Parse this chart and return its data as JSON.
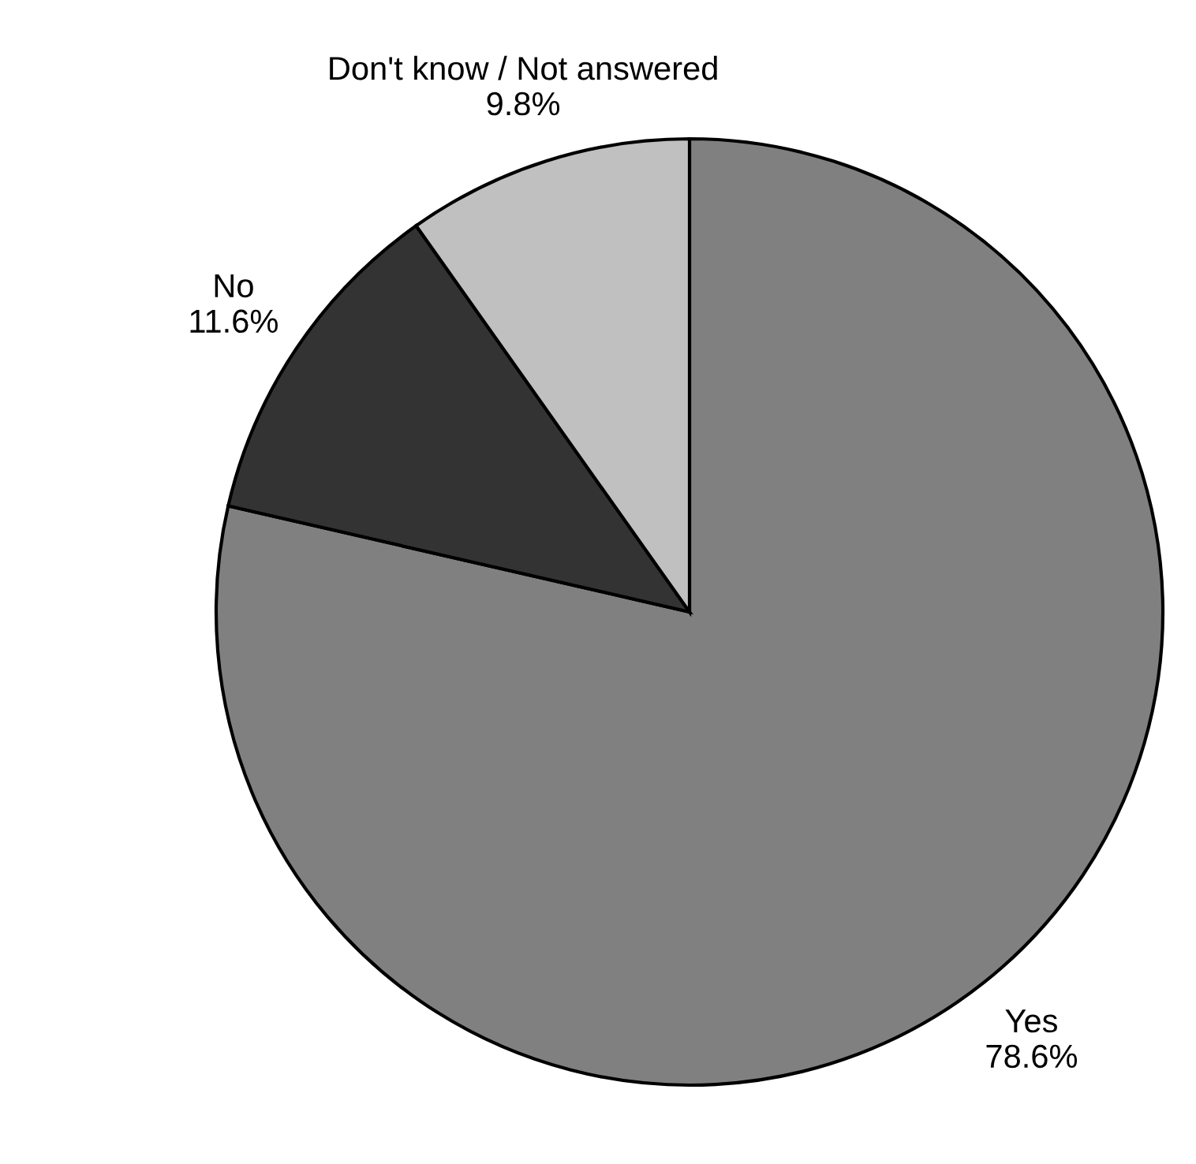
{
  "chart_data": {
    "type": "pie",
    "categories": [
      "Yes",
      "No",
      "Don't know / Not answered"
    ],
    "values": [
      78.6,
      11.6,
      9.8
    ],
    "colors": [
      "#808080",
      "#333333",
      "#c0c0c0"
    ],
    "value_labels": [
      "78.6%",
      "11.6%",
      "9.8%"
    ]
  }
}
